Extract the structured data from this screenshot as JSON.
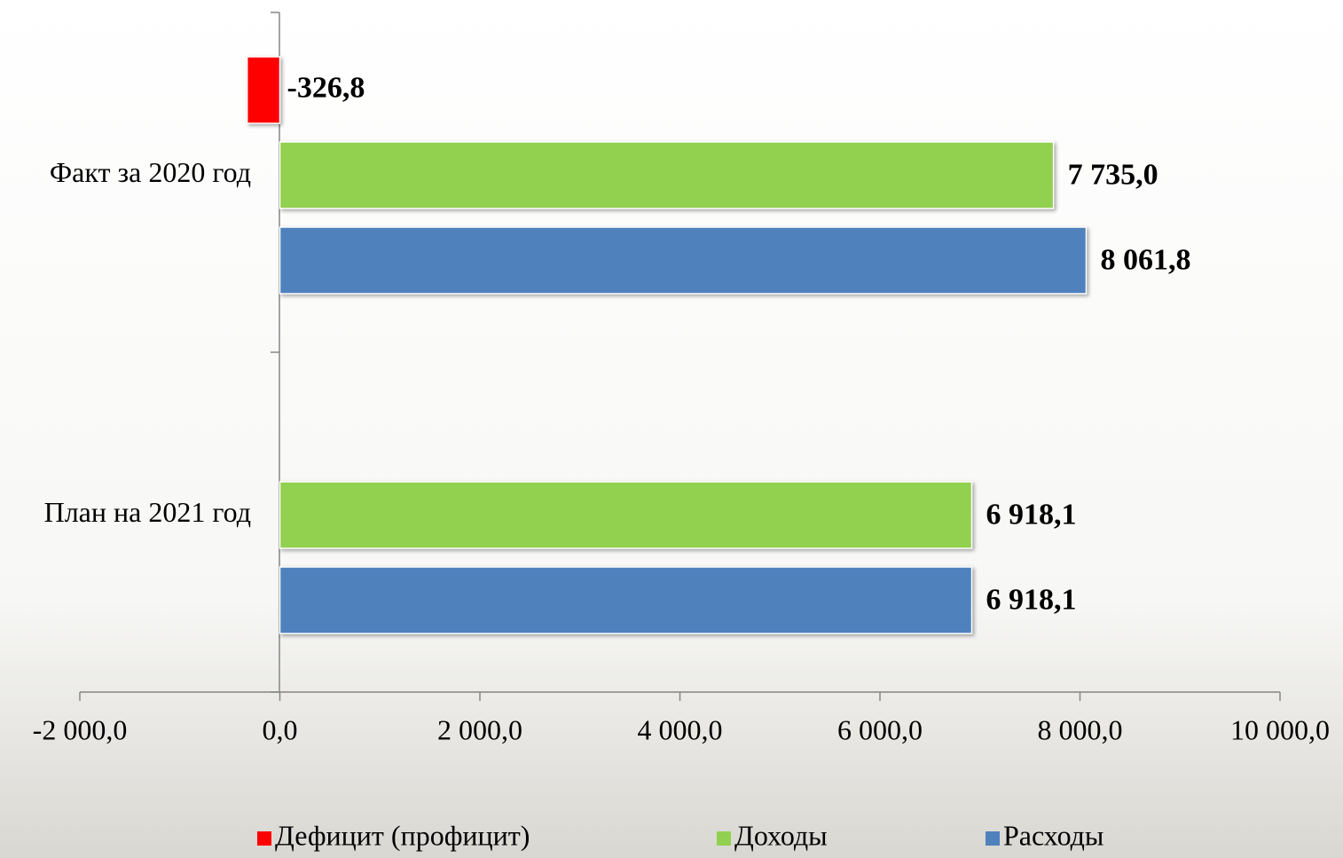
{
  "chart_data": {
    "type": "barh",
    "categories": [
      "Факт за 2020 год",
      "План на 2021 год"
    ],
    "series": [
      {
        "name": "Дефицит (профицит)",
        "color": "#ff0000",
        "values": [
          -326.8,
          null
        ],
        "value_labels": [
          "-326,8",
          null
        ]
      },
      {
        "name": "Доходы",
        "color": "#92d050",
        "values": [
          7735.0,
          6918.1
        ],
        "value_labels": [
          "7 735,0",
          "6 918,1"
        ]
      },
      {
        "name": "Расходы",
        "color": "#4f81bd",
        "values": [
          8061.8,
          6918.1
        ],
        "value_labels": [
          "8 061,8",
          "6 918,1"
        ]
      }
    ],
    "xlim": [
      -2000,
      10000
    ],
    "xticks": [
      {
        "value": -2000,
        "label": "-2 000,0"
      },
      {
        "value": 0,
        "label": "0,0"
      },
      {
        "value": 2000,
        "label": "2 000,0"
      },
      {
        "value": 4000,
        "label": "4 000,0"
      },
      {
        "value": 6000,
        "label": "6 000,0"
      },
      {
        "value": 8000,
        "label": "8 000,0"
      },
      {
        "value": 10000,
        "label": "10 000,0"
      }
    ],
    "legend": "bottom"
  }
}
